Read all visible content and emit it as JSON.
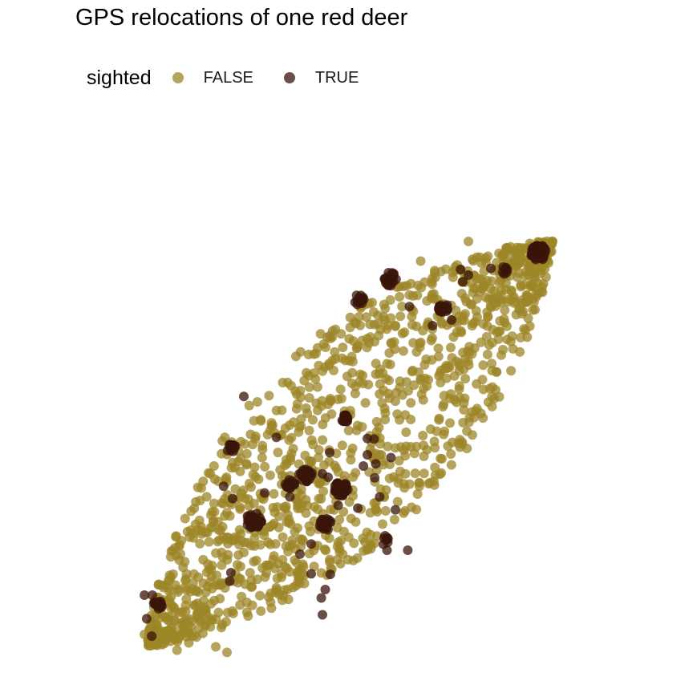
{
  "chart_data": {
    "type": "scatter",
    "title": "GPS relocations of one red deer",
    "xlabel": "",
    "ylabel": "",
    "axes_visible": false,
    "grid": false,
    "legend": {
      "title": "sighted",
      "placement": "top-left",
      "entries": [
        {
          "label": "FALSE",
          "color": "#9c8527"
        },
        {
          "label": "TRUE",
          "color": "#3a1408"
        }
      ]
    },
    "marker_opacity": 0.75,
    "xlim": [
      0,
      1000
    ],
    "ylim": [
      0,
      1000
    ],
    "envelope": {
      "tip_sw": [
        150,
        50
      ],
      "tip_ne": [
        870,
        770
      ],
      "half_width": 175,
      "upper_edge_shift": 30,
      "count_false": 1300
    },
    "series": [
      {
        "name": "FALSE",
        "color": "#9c8527",
        "points": [
          [
            160,
            58
          ],
          [
            175,
            52
          ],
          [
            290,
            38
          ],
          [
            201,
            42
          ],
          [
            222,
            55
          ],
          [
            270,
            48
          ],
          [
            150,
            62
          ],
          [
            143,
            70
          ],
          [
            196,
            68
          ],
          [
            247,
            72
          ],
          [
            850,
            737
          ],
          [
            868,
            752
          ],
          [
            790,
            758
          ],
          [
            720,
            770
          ],
          [
            740,
            742
          ],
          [
            700,
            728
          ],
          [
            660,
            718
          ],
          [
            635,
            735
          ]
        ]
      },
      {
        "name": "TRUE",
        "color": "#3a1408",
        "clusters": [
          {
            "center": [
              845,
              750
            ],
            "radius": 14,
            "count": 60
          },
          {
            "center": [
              580,
              703
            ],
            "radius": 12,
            "count": 32
          },
          {
            "center": [
              525,
              666
            ],
            "radius": 9,
            "count": 16
          },
          {
            "center": [
              675,
              652
            ],
            "radius": 9,
            "count": 16
          },
          {
            "center": [
              783,
              718
            ],
            "radius": 7,
            "count": 8
          },
          {
            "center": [
              500,
              454
            ],
            "radius": 7,
            "count": 16
          },
          {
            "center": [
              298,
              400
            ],
            "radius": 9,
            "count": 16
          },
          {
            "center": [
              492,
              328
            ],
            "radius": 14,
            "count": 34
          },
          {
            "center": [
              430,
              354
            ],
            "radius": 12,
            "count": 22
          },
          {
            "center": [
              402,
              338
            ],
            "radius": 9,
            "count": 14
          },
          {
            "center": [
              338,
              273
            ],
            "radius": 14,
            "count": 28
          },
          {
            "center": [
              465,
              266
            ],
            "radius": 11,
            "count": 22
          },
          {
            "center": [
              570,
              238
            ],
            "radius": 8,
            "count": 8
          },
          {
            "center": [
              168,
              124
            ],
            "radius": 9,
            "count": 14
          }
        ],
        "points": [
          [
            320,
            494
          ],
          [
            378,
            421
          ],
          [
            555,
            374
          ],
          [
            553,
            349
          ],
          [
            760,
            722
          ],
          [
            720,
            710
          ],
          [
            706,
            720
          ],
          [
            615,
            654
          ],
          [
            690,
            630
          ],
          [
            710,
            698
          ],
          [
            656,
            620
          ],
          [
            552,
            418
          ],
          [
            540,
            419
          ],
          [
            473,
            394
          ],
          [
            460,
            356
          ],
          [
            488,
            300
          ],
          [
            533,
            370
          ],
          [
            562,
            315
          ],
          [
            523,
            295
          ],
          [
            357,
            322
          ],
          [
            402,
            315
          ],
          [
            284,
            334
          ],
          [
            300,
            312
          ],
          [
            420,
            213
          ],
          [
            440,
            231
          ],
          [
            474,
            177
          ],
          [
            440,
            178
          ],
          [
            465,
            150
          ],
          [
            460,
            105
          ],
          [
            458,
            135
          ],
          [
            295,
            165
          ],
          [
            297,
            180
          ],
          [
            147,
            98
          ],
          [
            156,
            67
          ],
          [
            143,
            140
          ],
          [
            157,
            140
          ],
          [
            590,
            292
          ],
          [
            575,
            220
          ],
          [
            612,
            220
          ],
          [
            582,
            385
          ],
          [
            540,
            390
          ],
          [
            470,
            350
          ]
        ]
      }
    ]
  }
}
